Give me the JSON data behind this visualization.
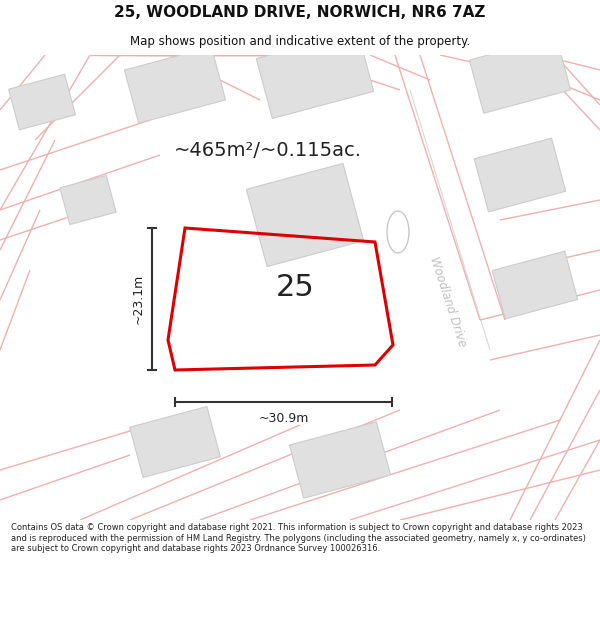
{
  "title_line1": "25, WOODLAND DRIVE, NORWICH, NR6 7AZ",
  "title_line2": "Map shows position and indicative extent of the property.",
  "area_text": "~465m²/~0.115ac.",
  "number_label": "25",
  "dim_height": "~23.1m",
  "dim_width": "~30.9m",
  "road_label": "Woodland Drive",
  "footer_text": "Contains OS data © Crown copyright and database right 2021. This information is subject to Crown copyright and database rights 2023 and is reproduced with the permission of HM Land Registry. The polygons (including the associated geometry, namely x, y co-ordinates) are subject to Crown copyright and database rights 2023 Ordnance Survey 100026316.",
  "plot_outline_color": "#dd0000",
  "dim_line_color": "#333333",
  "faint_line_color": "#f0b0b0",
  "building_fill": "#e0e0e0",
  "building_edge": "#cccccc",
  "road_stripe_color": "#e8c8c8",
  "road_text_color": "#c0c0c0",
  "title_color": "#111111",
  "footer_color": "#222222",
  "bg_color": "#ffffff"
}
